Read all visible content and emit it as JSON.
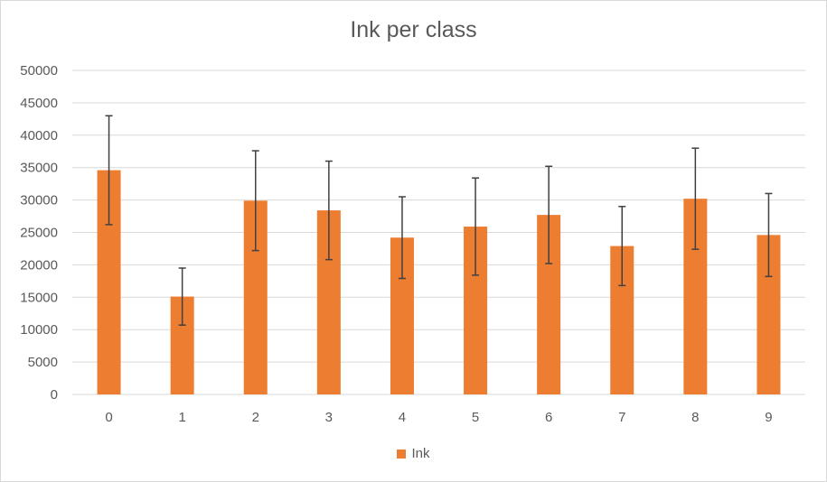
{
  "chart_data": {
    "type": "bar",
    "title": "Ink per class",
    "xlabel": "",
    "ylabel": "",
    "categories": [
      "0",
      "1",
      "2",
      "3",
      "4",
      "5",
      "6",
      "7",
      "8",
      "9"
    ],
    "series": [
      {
        "name": "Ink",
        "values": [
          34600,
          15100,
          29900,
          28400,
          24200,
          25900,
          27700,
          22900,
          30200,
          24600
        ],
        "error": [
          8400,
          4400,
          7700,
          7600,
          6300,
          7500,
          7500,
          6100,
          7800,
          6400
        ]
      }
    ],
    "ylim": [
      0,
      50000
    ],
    "yticks": [
      0,
      5000,
      10000,
      15000,
      20000,
      25000,
      30000,
      35000,
      40000,
      45000,
      50000
    ],
    "ytick_labels": [
      "0",
      "5000",
      "10000",
      "15000",
      "20000",
      "25000",
      "30000",
      "35000",
      "40000",
      "45000",
      "50000"
    ],
    "grid": true,
    "legend_position": "bottom",
    "colors": {
      "bar": "#ed7d31",
      "error_bar": "#404040",
      "grid": "#d9d9d9",
      "text": "#595959"
    }
  }
}
